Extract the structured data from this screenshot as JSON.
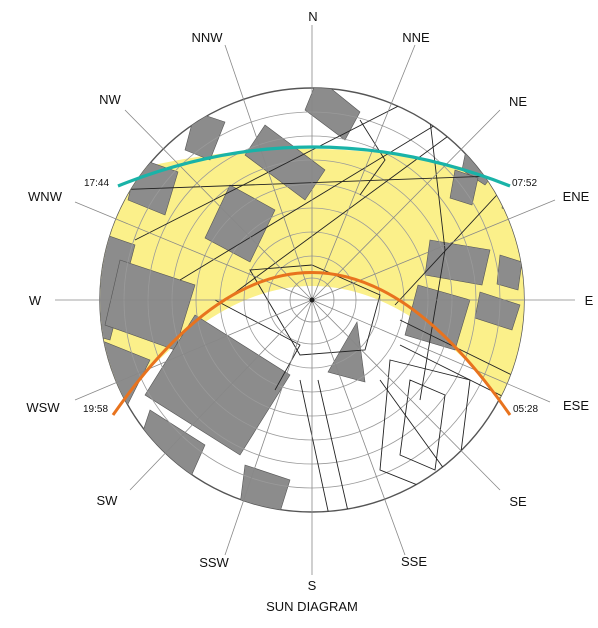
{
  "title": "SUN DIAGRAM",
  "directions": {
    "n": "N",
    "nne": "NNE",
    "ne": "NE",
    "ene": "ENE",
    "e": "E",
    "ese": "ESE",
    "se": "SE",
    "sse": "SSE",
    "s": "S",
    "ssw": "SSW",
    "sw": "SW",
    "wsw": "WSW",
    "w": "W",
    "wnw": "WNW",
    "nw": "NW",
    "nnw": "NNW"
  },
  "winter_path": {
    "start_time": "07:52",
    "end_time": "17:44",
    "color": "#19b3a8"
  },
  "summer_path": {
    "start_time": "05:28",
    "end_time": "19:58",
    "color": "#e8731e"
  },
  "colors": {
    "sun_zone": "#fbf08a",
    "buildings": "#8c8c8c",
    "grid": "#9a9a9a",
    "lines": "#222222"
  }
}
